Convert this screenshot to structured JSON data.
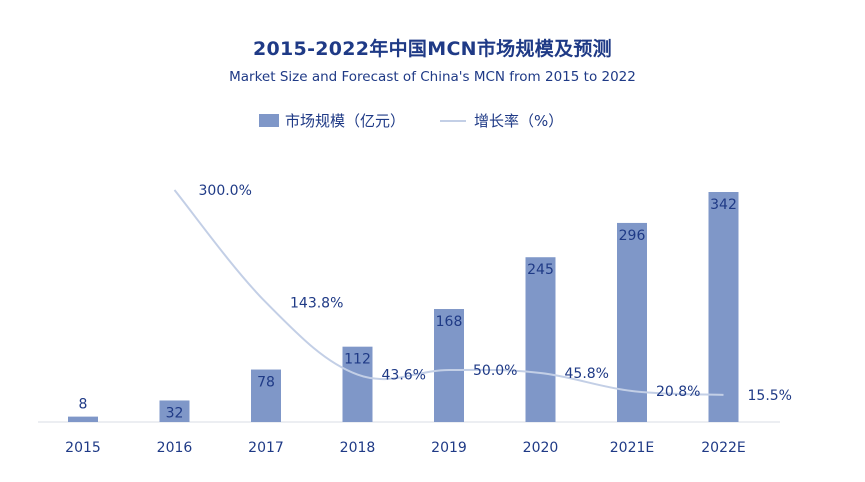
{
  "chart_data": {
    "type": "bar",
    "title": "2015-2022年中国MCN市场规模及预测",
    "subtitle": "Market Size and Forecast of China's MCN from 2015 to 2022",
    "categories": [
      "2015",
      "2016",
      "2017",
      "2018",
      "2019",
      "2020",
      "2021E",
      "2022E"
    ],
    "series": [
      {
        "name": "市场规模（亿元）",
        "type": "bar",
        "values": [
          8,
          32,
          78,
          112,
          168,
          245,
          296,
          342
        ],
        "labels": [
          "8",
          "32",
          "78",
          "112",
          "168",
          "245",
          "296",
          "342"
        ],
        "color": "#7f97c8"
      },
      {
        "name": "增长率（%）",
        "type": "line",
        "values": [
          null,
          300.0,
          143.8,
          43.6,
          50.0,
          45.8,
          20.8,
          15.5
        ],
        "labels": [
          "",
          "300.0%",
          "143.8%",
          "43.6%",
          "50.0%",
          "45.8%",
          "20.8%",
          "15.5%"
        ],
        "color": "#c3cfe6"
      }
    ],
    "bar_axis_range": [
      0,
      342
    ],
    "line_axis_range": [
      0,
      300
    ],
    "grid": false,
    "legend_position": "top-center"
  }
}
